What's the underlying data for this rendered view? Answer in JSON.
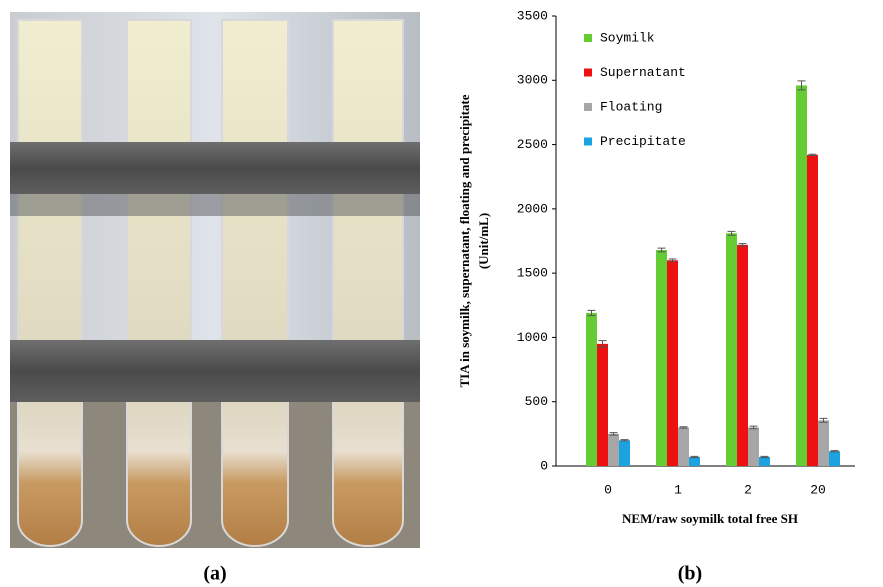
{
  "panel_labels": [
    "(a)",
    "(b)"
  ],
  "chart_data": {
    "type": "bar",
    "ylabel": [
      "TIA in soymilk, supernatant, floating and precipitate",
      "(Unit/mL)"
    ],
    "xlabel": "NEM/raw soymilk total free SH",
    "categories": [
      "0",
      "1",
      "2",
      "20"
    ],
    "series": [
      {
        "name": "Soymilk",
        "color": "#66cc33",
        "values": [
          1190,
          1680,
          1810,
          2960
        ],
        "errors": [
          20,
          15,
          15,
          35
        ]
      },
      {
        "name": "Supernatant",
        "color": "#ee1111",
        "values": [
          950,
          1600,
          1720,
          2420
        ],
        "errors": [
          25,
          10,
          10,
          5
        ]
      },
      {
        "name": "Floating",
        "color": "#a6a6a6",
        "values": [
          250,
          300,
          300,
          355
        ],
        "errors": [
          10,
          5,
          10,
          15
        ]
      },
      {
        "name": "Precipitate",
        "color": "#1aa3e0",
        "values": [
          200,
          70,
          70,
          115
        ],
        "errors": [
          5,
          5,
          5,
          5
        ]
      }
    ],
    "ylim": [
      0,
      3500
    ],
    "yticks": [
      0,
      500,
      1000,
      1500,
      2000,
      2500,
      3000,
      3500
    ],
    "legend": "upper-left",
    "grid": false
  }
}
